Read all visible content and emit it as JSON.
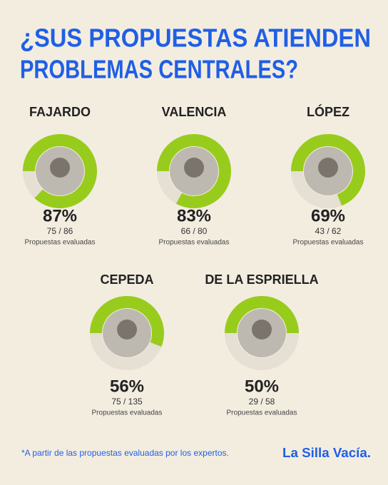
{
  "title": [
    "¿SUS PROPUESTAS ATIENDEN",
    "PROBLEMAS CENTRALES?"
  ],
  "chart_data": [
    {
      "type": "donut",
      "title": "FAJARDO",
      "values": [
        87
      ],
      "value_labels": [
        "87%"
      ],
      "ylim": [
        0,
        100
      ],
      "color": "#98cc1c",
      "track_color": "#e6dfd3",
      "annotation": "75 / 86",
      "caption": "Propuestas evaluadas"
    },
    {
      "type": "donut",
      "title": "VALENCIA",
      "values": [
        83
      ],
      "value_labels": [
        "83%"
      ],
      "ylim": [
        0,
        100
      ],
      "color": "#98cc1c",
      "track_color": "#e6dfd3",
      "annotation": "66 / 80",
      "caption": "Propuestas evaluadas"
    },
    {
      "type": "donut",
      "title": "LÓPEZ",
      "values": [
        69
      ],
      "value_labels": [
        "69%"
      ],
      "ylim": [
        0,
        100
      ],
      "color": "#98cc1c",
      "track_color": "#e6dfd3",
      "annotation": "43 / 62",
      "caption": "Propuestas evaluadas"
    },
    {
      "type": "donut",
      "title": "CEPEDA",
      "values": [
        56
      ],
      "value_labels": [
        "56%"
      ],
      "ylim": [
        0,
        100
      ],
      "color": "#98cc1c",
      "track_color": "#e6dfd3",
      "annotation": "75 / 135",
      "caption": "Propuestas evaluadas"
    },
    {
      "type": "donut",
      "title": "DE LA ESPRIELLA",
      "values": [
        50
      ],
      "value_labels": [
        "50%"
      ],
      "ylim": [
        0,
        100
      ],
      "color": "#98cc1c",
      "track_color": "#e6dfd3",
      "annotation": "29 / 58",
      "caption": "Propuestas evaluadas"
    }
  ],
  "footnote": "*A partir de las propuestas evaluadas por los expertos.",
  "logo": "La Silla Vacía."
}
